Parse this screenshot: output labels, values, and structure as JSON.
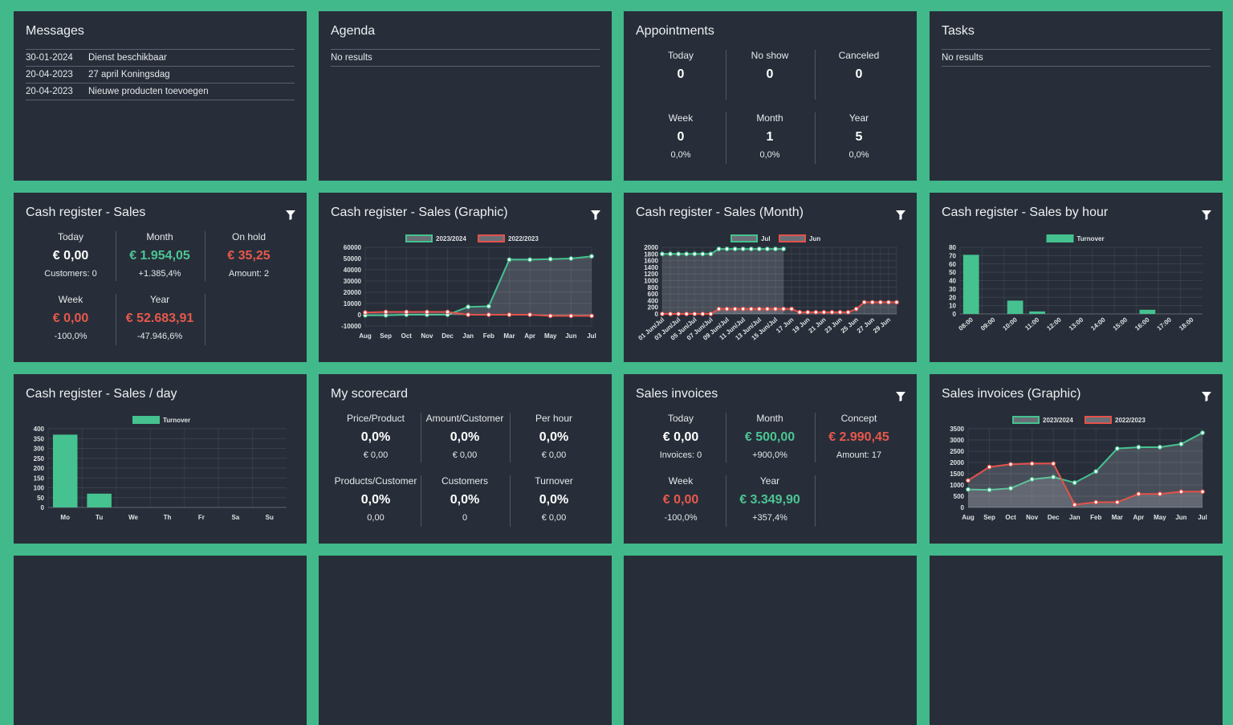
{
  "widgets": [
    {
      "title": "Messages",
      "kind": "list",
      "rows": [
        [
          "30-01-2024",
          "Dienst beschikbaar"
        ],
        [
          "20-04-2023",
          "27 april Koningsdag"
        ],
        [
          "20-04-2023",
          "Nieuwe producten toevoegen"
        ]
      ]
    },
    {
      "title": "Agenda",
      "kind": "list",
      "rows": [
        [
          "No results"
        ]
      ]
    },
    {
      "title": "Appointments",
      "kind": "stats",
      "stats": [
        {
          "label": "Today",
          "value": 0
        },
        {
          "label": "No show",
          "value": 0
        },
        {
          "label": "Canceled",
          "value": 0
        },
        {
          "label": "Week",
          "value": 0,
          "sub": "0,0%"
        },
        {
          "label": "Month",
          "value": 1,
          "sub": "0,0%"
        },
        {
          "label": "Year",
          "value": 5,
          "sub": "0,0%"
        }
      ]
    },
    {
      "title": "Tasks",
      "kind": "list",
      "rows": [
        [
          "No results"
        ]
      ]
    },
    {
      "title": "Cash register - Sales",
      "kind": "stats",
      "filter": true,
      "stats": [
        {
          "label": "Today",
          "value": "€ 0,00",
          "sub": "Customers: 0"
        },
        {
          "label": "Month",
          "value": "€ 1.954,05",
          "sub": "+1.385,4%",
          "color": "#4cc493"
        },
        {
          "label": "On hold",
          "value": "€ 35,25",
          "sub": "Amount: 2",
          "color": "#e8584c"
        },
        {
          "label": "Week",
          "value": "€ 0,00",
          "sub": "-100,0%",
          "color": "#e8584c"
        },
        {
          "label": "Year",
          "value": "€ 52.683,91",
          "sub": "-47.946,6%",
          "color": "#e8584c"
        }
      ]
    },
    {
      "title": "Cash register - Sales (Graphic)",
      "kind": "chart",
      "filter": true,
      "chart": {
        "type": "line",
        "categories": [
          "Aug",
          "Sep",
          "Oct",
          "Nov",
          "Dec",
          "Jan",
          "Feb",
          "Mar",
          "Apr",
          "May",
          "Jun",
          "Jul"
        ],
        "series": [
          {
            "name": "2023/2024",
            "color": "#45c290",
            "values": [
              -500,
              -500,
              0,
              0,
              0,
              7000,
              7500,
              49000,
              49000,
              49500,
              50000,
              52000
            ]
          },
          {
            "name": "2022/2023",
            "color": "#e5524a",
            "values": [
              2000,
              2500,
              2500,
              2500,
              2500,
              0,
              0,
              0,
              0,
              -1000,
              -1000,
              -1000
            ]
          }
        ],
        "ylim": [
          -10000,
          60000
        ],
        "yticks": [
          -10000,
          0,
          10000,
          20000,
          30000,
          40000,
          50000,
          60000
        ],
        "grid": true,
        "legend": "top"
      }
    },
    {
      "title": "Cash register - Sales (Month)",
      "kind": "chart",
      "filter": true,
      "chart": {
        "type": "line",
        "categories": [
          "01 Jun/Jul",
          null,
          "03 Jun/Jul",
          null,
          "05 Jun/Jul",
          null,
          "07 Jun/Jul",
          null,
          "09 Jun/Jul",
          null,
          "11 Jun/Jul",
          null,
          "13 Jun/Jul",
          null,
          "15 Jun/Jul",
          null,
          "17 Jun",
          null,
          "19 Jun",
          null,
          "21 Jun",
          null,
          "23 Jun",
          null,
          "25 Jun",
          null,
          "27 Jun",
          null,
          "29 Jun",
          null
        ],
        "series": [
          {
            "name": "Jul",
            "color": "#45c290",
            "values": [
              1800,
              1800,
              1800,
              1800,
              1800,
              1800,
              1800,
              1950,
              1950,
              1950,
              1950,
              1950,
              1950,
              1950,
              1950,
              1950,
              null,
              null,
              null,
              null,
              null,
              null,
              null,
              null,
              null,
              null,
              null,
              null,
              null,
              null
            ]
          },
          {
            "name": "Jun",
            "color": "#e5524a",
            "values": [
              0,
              0,
              0,
              0,
              0,
              0,
              0,
              150,
              150,
              150,
              150,
              150,
              150,
              150,
              150,
              150,
              150,
              50,
              50,
              50,
              50,
              50,
              50,
              50,
              150,
              350,
              350,
              350,
              350,
              350
            ]
          }
        ],
        "ylim": [
          0,
          2000
        ],
        "yticks": [
          0,
          200,
          400,
          600,
          800,
          1000,
          1200,
          1400,
          1600,
          1800,
          2000
        ],
        "grid": true,
        "legend": "top"
      }
    },
    {
      "title": "Cash register - Sales by hour",
      "kind": "chart",
      "filter": true,
      "chart": {
        "type": "bar",
        "categories": [
          "08:00",
          "09:00",
          "10:00",
          "11:00",
          "12:00",
          "13:00",
          "14:00",
          "15:00",
          "16:00",
          "17:00",
          "18:00"
        ],
        "series": [
          {
            "name": "Turnover",
            "color": "#45c290",
            "values": [
              71,
              0,
              16,
              3,
              0,
              0,
              0,
              0,
              5,
              0,
              0
            ]
          }
        ],
        "ylim": [
          0,
          80
        ],
        "yticks": [
          0,
          10,
          20,
          30,
          40,
          50,
          60,
          70,
          80
        ],
        "grid": true,
        "legend": "top"
      }
    },
    {
      "title": "Cash register - Sales / day",
      "kind": "chart",
      "chart": {
        "type": "bar",
        "categories": [
          "Mo",
          "Tu",
          "We",
          "Th",
          "Fr",
          "Sa",
          "Su"
        ],
        "series": [
          {
            "name": "Turnover",
            "color": "#45c290",
            "values": [
              370,
              70,
              0,
              0,
              0,
              0,
              0
            ]
          }
        ],
        "ylim": [
          0,
          400
        ],
        "yticks": [
          0,
          50,
          100,
          150,
          200,
          250,
          300,
          350,
          400
        ],
        "grid": true,
        "legend": "top"
      }
    },
    {
      "title": "My scorecard",
      "kind": "stats",
      "stats": [
        {
          "label": "Price/Product",
          "value": "0,0%",
          "sub": "€ 0,00"
        },
        {
          "label": "Amount/Customer",
          "value": "0,0%",
          "sub": "€ 0,00"
        },
        {
          "label": "Per hour",
          "value": "0,0%",
          "sub": "€ 0,00"
        },
        {
          "label": "Products/Customer",
          "value": "0,0%",
          "sub": "0,00"
        },
        {
          "label": "Customers",
          "value": "0,0%",
          "sub": "0"
        },
        {
          "label": "Turnover",
          "value": "0,0%",
          "sub": "€ 0,00"
        }
      ]
    },
    {
      "title": "Sales invoices",
      "kind": "stats",
      "filter": true,
      "stats": [
        {
          "label": "Today",
          "value": "€ 0,00",
          "sub": "Invoices: 0"
        },
        {
          "label": "Month",
          "value": "€ 500,00",
          "sub": "+900,0%",
          "color": "#4cc493"
        },
        {
          "label": "Concept",
          "value": "€ 2.990,45",
          "sub": "Amount: 17",
          "color": "#e8584c"
        },
        {
          "label": "Week",
          "value": "€ 0,00",
          "sub": "-100,0%",
          "color": "#e8584c"
        },
        {
          "label": "Year",
          "value": "€ 3.349,90",
          "sub": "+357,4%",
          "color": "#4cc493"
        }
      ]
    },
    {
      "title": "Sales invoices (Graphic)",
      "kind": "chart",
      "filter": true,
      "chart": {
        "type": "line",
        "categories": [
          "Aug",
          "Sep",
          "Oct",
          "Nov",
          "Dec",
          "Jan",
          "Feb",
          "Mar",
          "Apr",
          "May",
          "Jun",
          "Jul"
        ],
        "series": [
          {
            "name": "2023/2024",
            "color": "#45c290",
            "values": [
              800,
              780,
              850,
              1250,
              1350,
              1100,
              1600,
              2620,
              2680,
              2680,
              2820,
              3320
            ]
          },
          {
            "name": "2022/2023",
            "color": "#e5524a",
            "values": [
              1200,
              1800,
              1920,
              1950,
              1950,
              120,
              230,
              230,
              600,
              600,
              700,
              700
            ]
          }
        ],
        "ylim": [
          0,
          3500
        ],
        "yticks": [
          0,
          500,
          1000,
          1500,
          2000,
          2500,
          3000,
          3500
        ],
        "grid": true,
        "legend": "top"
      }
    }
  ]
}
